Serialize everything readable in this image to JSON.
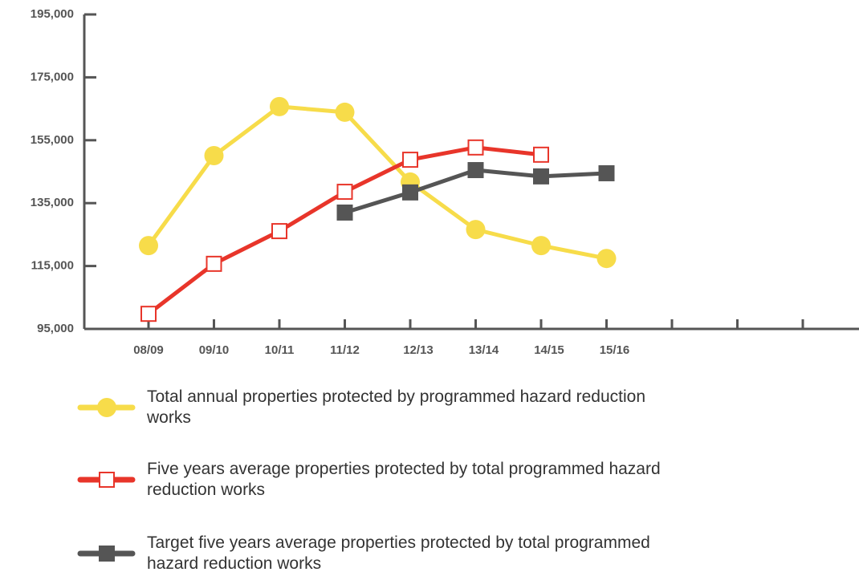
{
  "chart_data": {
    "type": "line",
    "categories": [
      "08/09",
      "09/10",
      "10/11",
      "11/12",
      "12/13",
      "13/14",
      "14/15",
      "15/16",
      null,
      null,
      null
    ],
    "series": [
      {
        "name": "Total annual properties protected by programmed hazard reduction works",
        "color": "#f7dc4a",
        "marker": "circle",
        "values": [
          121500,
          150100,
          165700,
          163900,
          141700,
          126600,
          121500,
          117400,
          null,
          null,
          null
        ]
      },
      {
        "name": "Five years average properties protected by total programmed hazard reduction works",
        "color": "#e8352a",
        "marker": "open-square",
        "values": [
          99800,
          115700,
          126100,
          138600,
          148800,
          152700,
          150400,
          null,
          null,
          null,
          null
        ]
      },
      {
        "name": "Target five years average properties protected by total programmed hazard reduction works",
        "color": "#555555",
        "marker": "square",
        "values": [
          null,
          null,
          null,
          132000,
          138400,
          145500,
          143500,
          144500,
          null,
          null,
          null
        ]
      }
    ],
    "ylim": [
      95000,
      195000
    ],
    "yticks": [
      {
        "value": 95000,
        "label": "95,000"
      },
      {
        "value": 115000,
        "label": "115,000"
      },
      {
        "value": 135000,
        "label": "135,000"
      },
      {
        "value": 155000,
        "label": "155,000"
      },
      {
        "value": 175000,
        "label": "175,000"
      },
      {
        "value": 195000,
        "label": "195,000"
      }
    ]
  }
}
